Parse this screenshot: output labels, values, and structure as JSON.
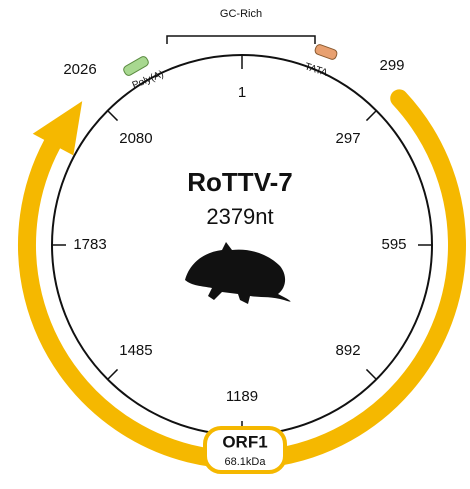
{
  "genome": {
    "name": "RoTTV-7",
    "length": "2379nt",
    "ticks": [
      "1",
      "297",
      "595",
      "892",
      "1189",
      "1485",
      "1783",
      "2080"
    ],
    "outer_labels": {
      "start": "299",
      "end": "2026"
    },
    "features": {
      "gc_rich": "GC-Rich",
      "tata": "TATA",
      "polya": "Poly(A)"
    },
    "orf": {
      "name": "ORF1",
      "mass": "68.1kDa"
    }
  }
}
